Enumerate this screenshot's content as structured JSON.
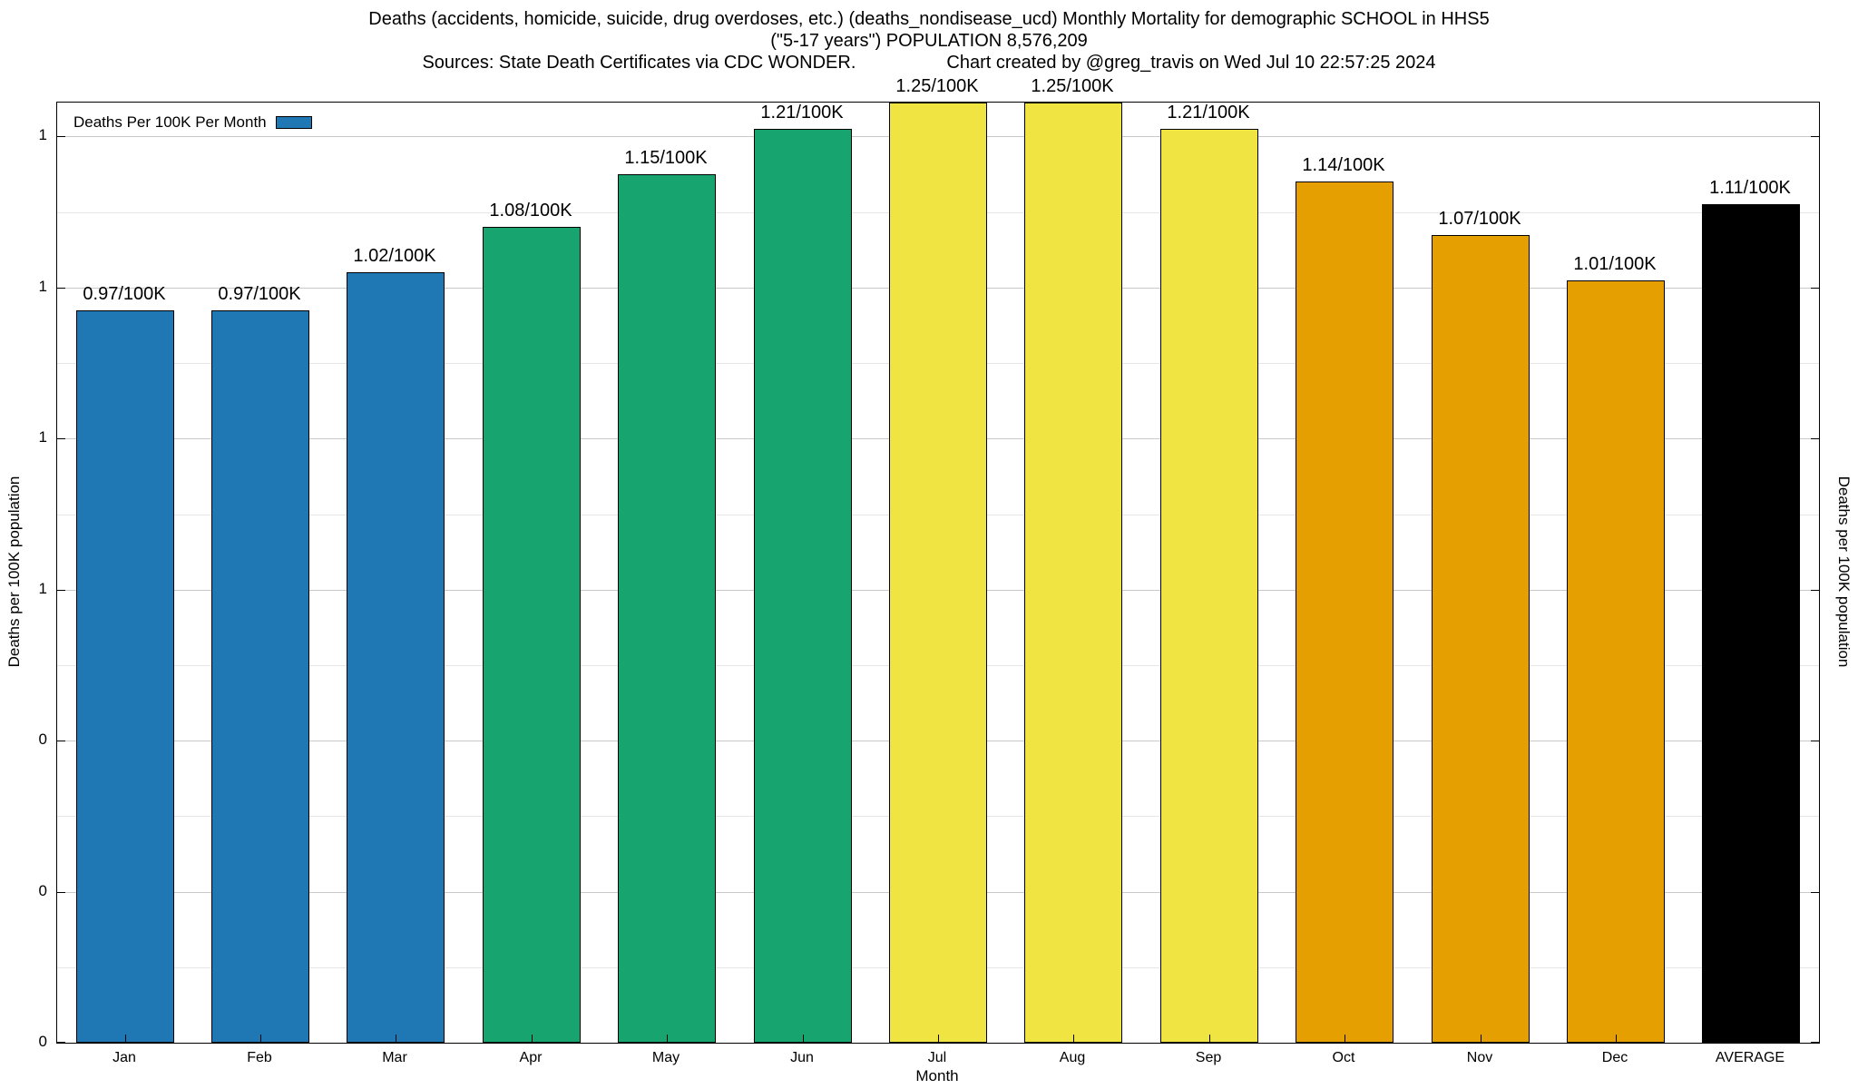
{
  "chart": {
    "title_line1": "Deaths (accidents, homicide, suicide, drug overdoses, etc.) (deaths_nondisease_ucd) Monthly Mortality for demographic SCHOOL in HHS5",
    "title_line2": "(\"5-17 years\") POPULATION 8,576,209",
    "sources": "Sources: State Death Certificates via CDC WONDER.",
    "credit": "Chart created by @greg_travis on Wed Jul 10 22:57:25 2024",
    "legend_label": "Deaths Per 100K Per Month",
    "xlabel": "Month",
    "ylabel_left": "Deaths per 100K population",
    "ylabel_right": "Deaths per 100K population"
  },
  "chart_data": {
    "type": "bar",
    "title": "Deaths (accidents, homicide, suicide, drug overdoses, etc.) (deaths_nondisease_ucd) Monthly Mortality for demographic SCHOOL in HHS5 (\"5-17 years\") POPULATION 8,576,209",
    "categories": [
      "Jan",
      "Feb",
      "Mar",
      "Apr",
      "May",
      "Jun",
      "Jul",
      "Aug",
      "Sep",
      "Oct",
      "Nov",
      "Dec",
      "AVERAGE"
    ],
    "values": [
      0.97,
      0.97,
      1.02,
      1.08,
      1.15,
      1.21,
      1.25,
      1.25,
      1.21,
      1.14,
      1.07,
      1.01,
      1.11
    ],
    "bar_labels": [
      "0.97/100K",
      "0.97/100K",
      "1.02/100K",
      "1.08/100K",
      "1.15/100K",
      "1.21/100K",
      "1.25/100K",
      "1.25/100K",
      "1.21/100K",
      "1.14/100K",
      "1.07/100K",
      "1.01/100K",
      "1.11/100K"
    ],
    "bar_colors": [
      "#1f78b4",
      "#1f78b4",
      "#1f78b4",
      "#17a46f",
      "#17a46f",
      "#17a46f",
      "#f0e442",
      "#f0e442",
      "#f0e442",
      "#e69f00",
      "#e69f00",
      "#e69f00",
      "#000000"
    ],
    "legend": {
      "label": "Deaths Per 100K Per Month",
      "color": "#1f78b4",
      "position": "top-left"
    },
    "xlabel": "Month",
    "ylabel": "Deaths per 100K population",
    "ylim": [
      0,
      1.245
    ],
    "y_ticks": [
      {
        "value": 0.0,
        "label": "0"
      },
      {
        "value": 0.2,
        "label": "0"
      },
      {
        "value": 0.4,
        "label": "0"
      },
      {
        "value": 0.6,
        "label": "1"
      },
      {
        "value": 0.8,
        "label": "1"
      },
      {
        "value": 1.0,
        "label": "1"
      },
      {
        "value": 1.2,
        "label": "1"
      }
    ],
    "y_minor_step": 0.1,
    "grid": true
  },
  "colors": {
    "background": "#ffffff",
    "bar_blue": "#1f78b4",
    "bar_green": "#17a46f",
    "bar_yellow": "#f0e442",
    "bar_orange": "#e69f00",
    "bar_black": "#000000",
    "grid_major": "#c9c9c9",
    "grid_minor": "#e6e6e6",
    "axis": "#000000"
  }
}
